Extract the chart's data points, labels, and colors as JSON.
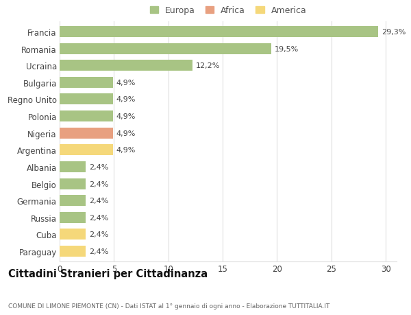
{
  "categories": [
    "Francia",
    "Romania",
    "Ucraina",
    "Bulgaria",
    "Regno Unito",
    "Polonia",
    "Nigeria",
    "Argentina",
    "Albania",
    "Belgio",
    "Germania",
    "Russia",
    "Cuba",
    "Paraguay"
  ],
  "values": [
    29.3,
    19.5,
    12.2,
    4.9,
    4.9,
    4.9,
    4.9,
    4.9,
    2.4,
    2.4,
    2.4,
    2.4,
    2.4,
    2.4
  ],
  "labels": [
    "29,3%",
    "19,5%",
    "12,2%",
    "4,9%",
    "4,9%",
    "4,9%",
    "4,9%",
    "4,9%",
    "2,4%",
    "2,4%",
    "2,4%",
    "2,4%",
    "2,4%",
    "2,4%"
  ],
  "colors": [
    "#a8c484",
    "#a8c484",
    "#a8c484",
    "#a8c484",
    "#a8c484",
    "#a8c484",
    "#e8a080",
    "#f5d87a",
    "#a8c484",
    "#a8c484",
    "#a8c484",
    "#a8c484",
    "#f5d87a",
    "#f5d87a"
  ],
  "legend_labels": [
    "Europa",
    "Africa",
    "America"
  ],
  "legend_colors": [
    "#a8c484",
    "#e8a080",
    "#f5d87a"
  ],
  "title": "Cittadini Stranieri per Cittadinanza",
  "subtitle": "COMUNE DI LIMONE PIEMONTE (CN) - Dati ISTAT al 1° gennaio di ogni anno - Elaborazione TUTTITALIA.IT",
  "xlim": [
    0,
    31
  ],
  "xticks": [
    0,
    5,
    10,
    15,
    20,
    25,
    30
  ],
  "bg_color": "#ffffff",
  "grid_color": "#dddddd"
}
